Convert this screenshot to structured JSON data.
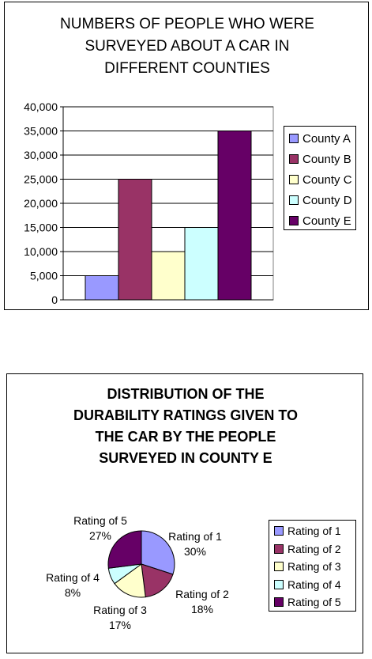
{
  "chart_data": [
    {
      "type": "bar",
      "title_lines": [
        "NUMBERS OF PEOPLE WHO WERE",
        "SURVEYED ABOUT A CAR IN",
        "DIFFERENT COUNTIES"
      ],
      "series": [
        {
          "name": "County A",
          "value": 5000,
          "color": "#9999ff"
        },
        {
          "name": "County B",
          "value": 25000,
          "color": "#993366"
        },
        {
          "name": "County C",
          "value": 10000,
          "color": "#ffffcc"
        },
        {
          "name": "County D",
          "value": 15000,
          "color": "#ccffff"
        },
        {
          "name": "County E",
          "value": 35000,
          "color": "#660066"
        }
      ],
      "y_ticks": [
        "40,000",
        "35,000",
        "30,000",
        "25,000",
        "20,000",
        "15,000",
        "10,000",
        "5,000",
        "0"
      ],
      "ylim": [
        0,
        40000
      ],
      "grid": true,
      "legend_position": "right",
      "plot_background": "#ffffff"
    },
    {
      "type": "pie",
      "title_lines": [
        "DISTRIBUTION OF THE",
        "DURABILITY RATINGS GIVEN TO",
        "THE CAR BY THE PEOPLE",
        "SURVEYED IN COUNTY E"
      ],
      "slices": [
        {
          "name": "Rating of 1",
          "percent": 30,
          "pct_label": "30%",
          "color": "#9999ff"
        },
        {
          "name": "Rating of 2",
          "percent": 18,
          "pct_label": "18%",
          "color": "#993366"
        },
        {
          "name": "Rating of 3",
          "percent": 17,
          "pct_label": "17%",
          "color": "#ffffcc"
        },
        {
          "name": "Rating of 4",
          "percent": 8,
          "pct_label": "8%",
          "color": "#ccffff"
        },
        {
          "name": "Rating of 5",
          "percent": 27,
          "pct_label": "27%",
          "color": "#660066"
        }
      ],
      "legend_position": "right"
    }
  ]
}
